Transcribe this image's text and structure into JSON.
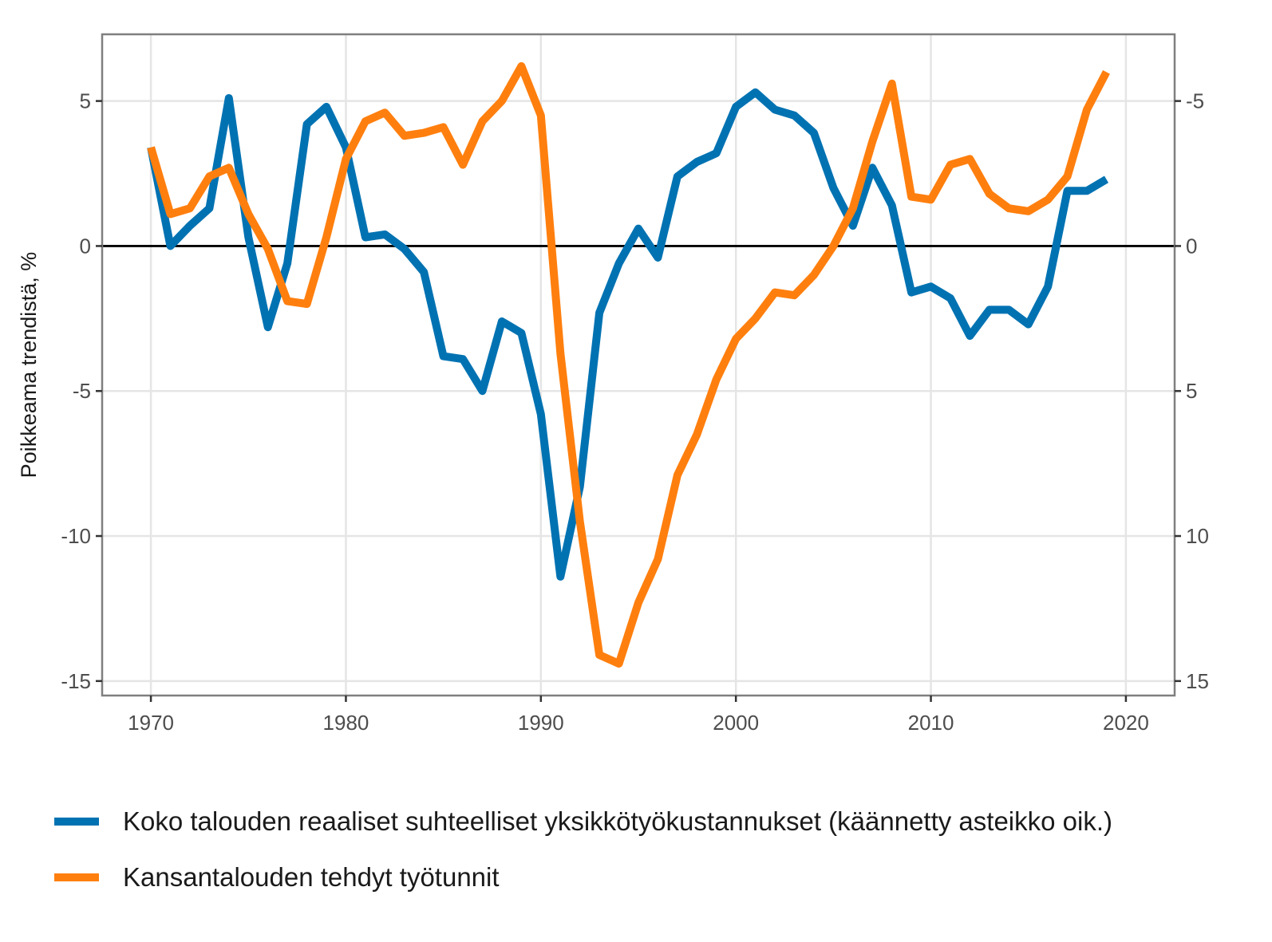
{
  "chart_data": {
    "type": "line",
    "title": "",
    "xlabel": "",
    "ylabel": "Poikkeama trendistä, %",
    "x": [
      1970,
      1971,
      1972,
      1973,
      1974,
      1975,
      1976,
      1977,
      1978,
      1979,
      1980,
      1981,
      1982,
      1983,
      1984,
      1985,
      1986,
      1987,
      1988,
      1989,
      1990,
      1991,
      1992,
      1993,
      1994,
      1995,
      1996,
      1997,
      1998,
      1999,
      2000,
      2001,
      2002,
      2003,
      2004,
      2005,
      2006,
      2007,
      2008,
      2009,
      2010,
      2011,
      2012,
      2013,
      2014,
      2015,
      2016,
      2017,
      2018,
      2019
    ],
    "xlim": [
      1967.5,
      2022.5
    ],
    "x_ticks": [
      1970,
      1980,
      1990,
      2000,
      2010,
      2020
    ],
    "x_tick_labels": [
      "1970",
      "1980",
      "1990",
      "2000",
      "2010",
      "2020"
    ],
    "ylim": [
      -15.5,
      7.3
    ],
    "y_ticks": [
      5,
      0,
      -5,
      -10,
      -15
    ],
    "y_tick_labels": [
      "5",
      "0",
      "-5",
      "-10",
      "-15"
    ],
    "y2_scale": "reversed",
    "y2_ticks": [
      -5,
      0,
      5,
      10,
      15
    ],
    "y2_tick_labels": [
      "-5",
      "0",
      "5",
      "10",
      "15"
    ],
    "zero_line": true,
    "grid": true,
    "legend_position": "bottom",
    "series": [
      {
        "name": "Koko talouden reaaliset suhteelliset yksikkötyökustannukset (käännetty asteikko oik.)",
        "color": "#0072b2",
        "axis": "right-reversed",
        "values": [
          -3.4,
          0.0,
          -0.7,
          -1.3,
          -5.1,
          -0.3,
          2.8,
          0.6,
          -4.2,
          -4.8,
          -3.4,
          -0.3,
          -0.4,
          0.1,
          0.9,
          3.8,
          3.9,
          5.0,
          2.6,
          3.0,
          5.8,
          11.4,
          8.3,
          2.3,
          0.6,
          -0.6,
          0.4,
          -2.4,
          -2.9,
          -3.2,
          -4.8,
          -5.3,
          -4.7,
          -4.5,
          -3.9,
          -2.0,
          -0.7,
          -2.7,
          -1.4,
          1.6,
          1.4,
          1.8,
          3.1,
          2.2,
          2.2,
          2.7,
          1.4,
          -1.9,
          -1.9,
          -2.3
        ]
      },
      {
        "name": "Kansantalouden tehdyt työtunnit",
        "color": "#ff7f0e",
        "axis": "left",
        "values": [
          3.4,
          1.1,
          1.3,
          2.4,
          2.7,
          1.1,
          -0.1,
          -1.9,
          -2.0,
          0.3,
          3.0,
          4.3,
          4.6,
          3.8,
          3.9,
          4.1,
          2.8,
          4.3,
          5.0,
          6.2,
          4.5,
          -3.7,
          -9.5,
          -14.1,
          -14.4,
          -12.3,
          -10.8,
          -7.9,
          -6.5,
          -4.6,
          -3.2,
          -2.5,
          -1.6,
          -1.7,
          -1.0,
          0.0,
          1.3,
          3.6,
          5.6,
          1.7,
          1.6,
          2.8,
          3.0,
          1.8,
          1.3,
          1.2,
          1.6,
          2.4,
          4.7,
          6.0
        ]
      }
    ]
  }
}
